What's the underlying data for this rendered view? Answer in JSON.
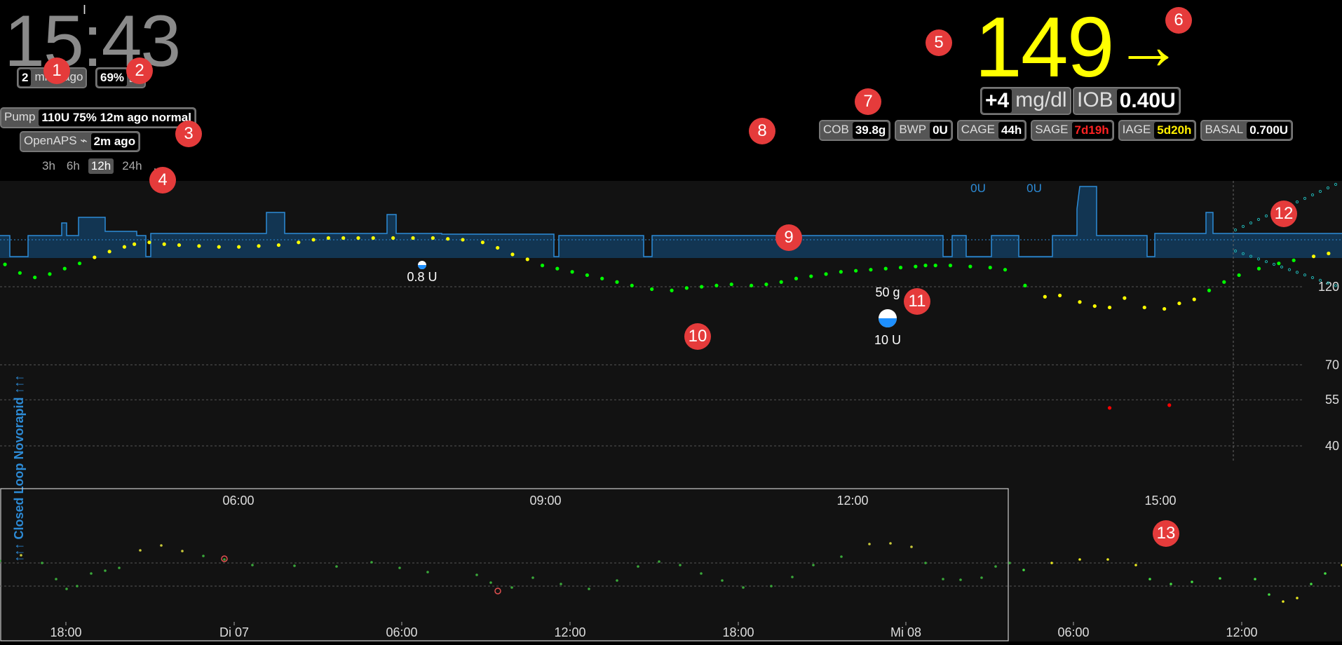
{
  "clock": "15:43",
  "status": {
    "last_reading": {
      "value": "2",
      "label": "mins ago"
    },
    "uploader_battery": {
      "value": "69%"
    },
    "pump": {
      "label": "Pump",
      "value": "110U 75% 12m ago normal"
    },
    "loop": {
      "label": "OpenAPS ⌁",
      "value": "2m ago"
    }
  },
  "time_ranges": {
    "options": [
      "3h",
      "6h",
      "12h",
      "24h",
      "..."
    ],
    "selected": "12h"
  },
  "bg": {
    "value": "149",
    "arrow": "→",
    "color": "#ffff00"
  },
  "delta": {
    "value": "+4",
    "unit": "mg/dl"
  },
  "iob": {
    "label": "IOB",
    "value": "0.40U"
  },
  "pills": [
    {
      "label": "COB",
      "value": "39.8g",
      "style": "normal"
    },
    {
      "label": "BWP",
      "value": "0U",
      "style": "normal"
    },
    {
      "label": "CAGE",
      "value": "44h",
      "style": "normal"
    },
    {
      "label": "SAGE",
      "value": "7d19h",
      "style": "red"
    },
    {
      "label": "IAGE",
      "value": "5d20h",
      "style": "yellow"
    },
    {
      "label": "BASAL",
      "value": "0.700U",
      "style": "normal"
    }
  ],
  "annotation_markers": [
    "1",
    "2",
    "3",
    "4",
    "5",
    "6",
    "7",
    "8",
    "9",
    "10",
    "11",
    "12",
    "13"
  ],
  "colors": {
    "in_range": "#00ff00",
    "high": "#ffff00",
    "low": "#ff0000",
    "basal": "#2d8bd6",
    "forecast": "#20b0b0",
    "background": "#000000",
    "chart_bg": "#121212"
  },
  "chart_data": [
    {
      "type": "scatter",
      "title": "",
      "profile_label": "↑↑↑ Closed Loop Novorapid ↑↑↑",
      "x_ticks": [
        "06:00",
        "09:00",
        "12:00",
        "15:00"
      ],
      "y_ticks": [
        120,
        70,
        55,
        40
      ],
      "y_scale": "log",
      "ylim": [
        35,
        400
      ],
      "xlim_hours": [
        3.7,
        16.1
      ],
      "treatments": [
        {
          "time": 7.0,
          "insulin": "0.8 U"
        },
        {
          "time": 12.7,
          "carbs": "50 g",
          "insulin": "10 U"
        }
      ],
      "basal_labels": [
        "0U",
        "0U"
      ],
      "series": [
        {
          "points": [
            [
              3.75,
              140
            ],
            [
              3.9,
              132
            ],
            [
              4.05,
              128
            ],
            [
              4.2,
              131
            ],
            [
              4.35,
              136
            ],
            [
              4.5,
              141
            ],
            [
              4.65,
              147
            ],
            [
              4.8,
              153
            ],
            [
              4.95,
              158
            ],
            [
              5.05,
              161
            ],
            [
              5.2,
              163
            ],
            [
              5.35,
              161
            ],
            [
              5.5,
              160
            ],
            [
              5.7,
              159
            ],
            [
              5.9,
              158
            ],
            [
              6.1,
              158
            ],
            [
              6.3,
              159
            ],
            [
              6.5,
              160
            ],
            [
              6.7,
              163
            ],
            [
              6.85,
              166
            ],
            [
              7.0,
              168
            ],
            [
              7.15,
              168
            ],
            [
              7.3,
              168
            ],
            [
              7.45,
              168
            ],
            [
              7.65,
              168
            ],
            [
              7.85,
              168
            ],
            [
              8.05,
              168
            ],
            [
              8.2,
              167
            ],
            [
              8.35,
              166
            ],
            [
              8.55,
              163
            ],
            [
              8.7,
              157
            ],
            [
              8.85,
              150
            ],
            [
              9.0,
              145
            ],
            [
              9.15,
              139
            ],
            [
              9.3,
              136
            ],
            [
              9.45,
              133
            ],
            [
              9.6,
              130
            ],
            [
              9.75,
              127
            ],
            [
              9.9,
              124
            ],
            [
              10.05,
              121
            ],
            [
              10.25,
              118
            ],
            [
              10.45,
              117
            ],
            [
              10.6,
              119
            ],
            [
              10.75,
              120
            ],
            [
              10.9,
              121
            ],
            [
              11.05,
              122
            ],
            [
              11.25,
              121
            ],
            [
              11.4,
              122
            ],
            [
              11.55,
              124
            ],
            [
              11.7,
              127
            ],
            [
              11.85,
              129
            ],
            [
              12.0,
              131
            ],
            [
              12.15,
              133
            ],
            [
              12.3,
              134
            ],
            [
              12.45,
              135
            ],
            [
              12.6,
              136
            ],
            [
              12.75,
              137
            ],
            [
              12.9,
              138
            ],
            [
              13.0,
              139
            ],
            [
              13.1,
              139
            ],
            [
              13.25,
              139
            ],
            [
              13.45,
              138
            ],
            [
              13.65,
              137
            ],
            [
              13.8,
              135
            ],
            [
              14.0,
              121
            ],
            [
              14.2,
              112
            ],
            [
              14.35,
              113
            ],
            [
              14.55,
              108
            ],
            [
              14.7,
              105
            ],
            [
              14.85,
              104
            ],
            [
              15.0,
              111
            ],
            [
              15.2,
              104
            ],
            [
              15.4,
              103
            ],
            [
              15.55,
              107
            ],
            [
              15.7,
              110
            ],
            [
              15.85,
              117
            ],
            [
              16.0,
              124
            ],
            [
              16.15,
              130
            ],
            [
              16.35,
              136
            ],
            [
              16.55,
              141
            ],
            [
              16.7,
              144
            ],
            [
              16.9,
              148
            ],
            [
              17.05,
              151
            ],
            [
              17.25,
              154
            ],
            [
              17.4,
              156
            ],
            [
              17.55,
              158
            ]
          ]
        },
        {
          "name": "",
          "points": [
            [
              3.75,
              128
            ],
            [
              3.9,
              126
            ],
            [
              4.05,
              127
            ],
            [
              4.2,
              130
            ]
          ]
        }
      ]
    },
    {
      "type": "scatter",
      "title": "",
      "x_ticks": [
        "18:00",
        "Di 07",
        "06:00",
        "12:00",
        "18:00",
        "Mi 08",
        "06:00",
        "12:00"
      ],
      "ylim": [
        35,
        400
      ]
    }
  ]
}
